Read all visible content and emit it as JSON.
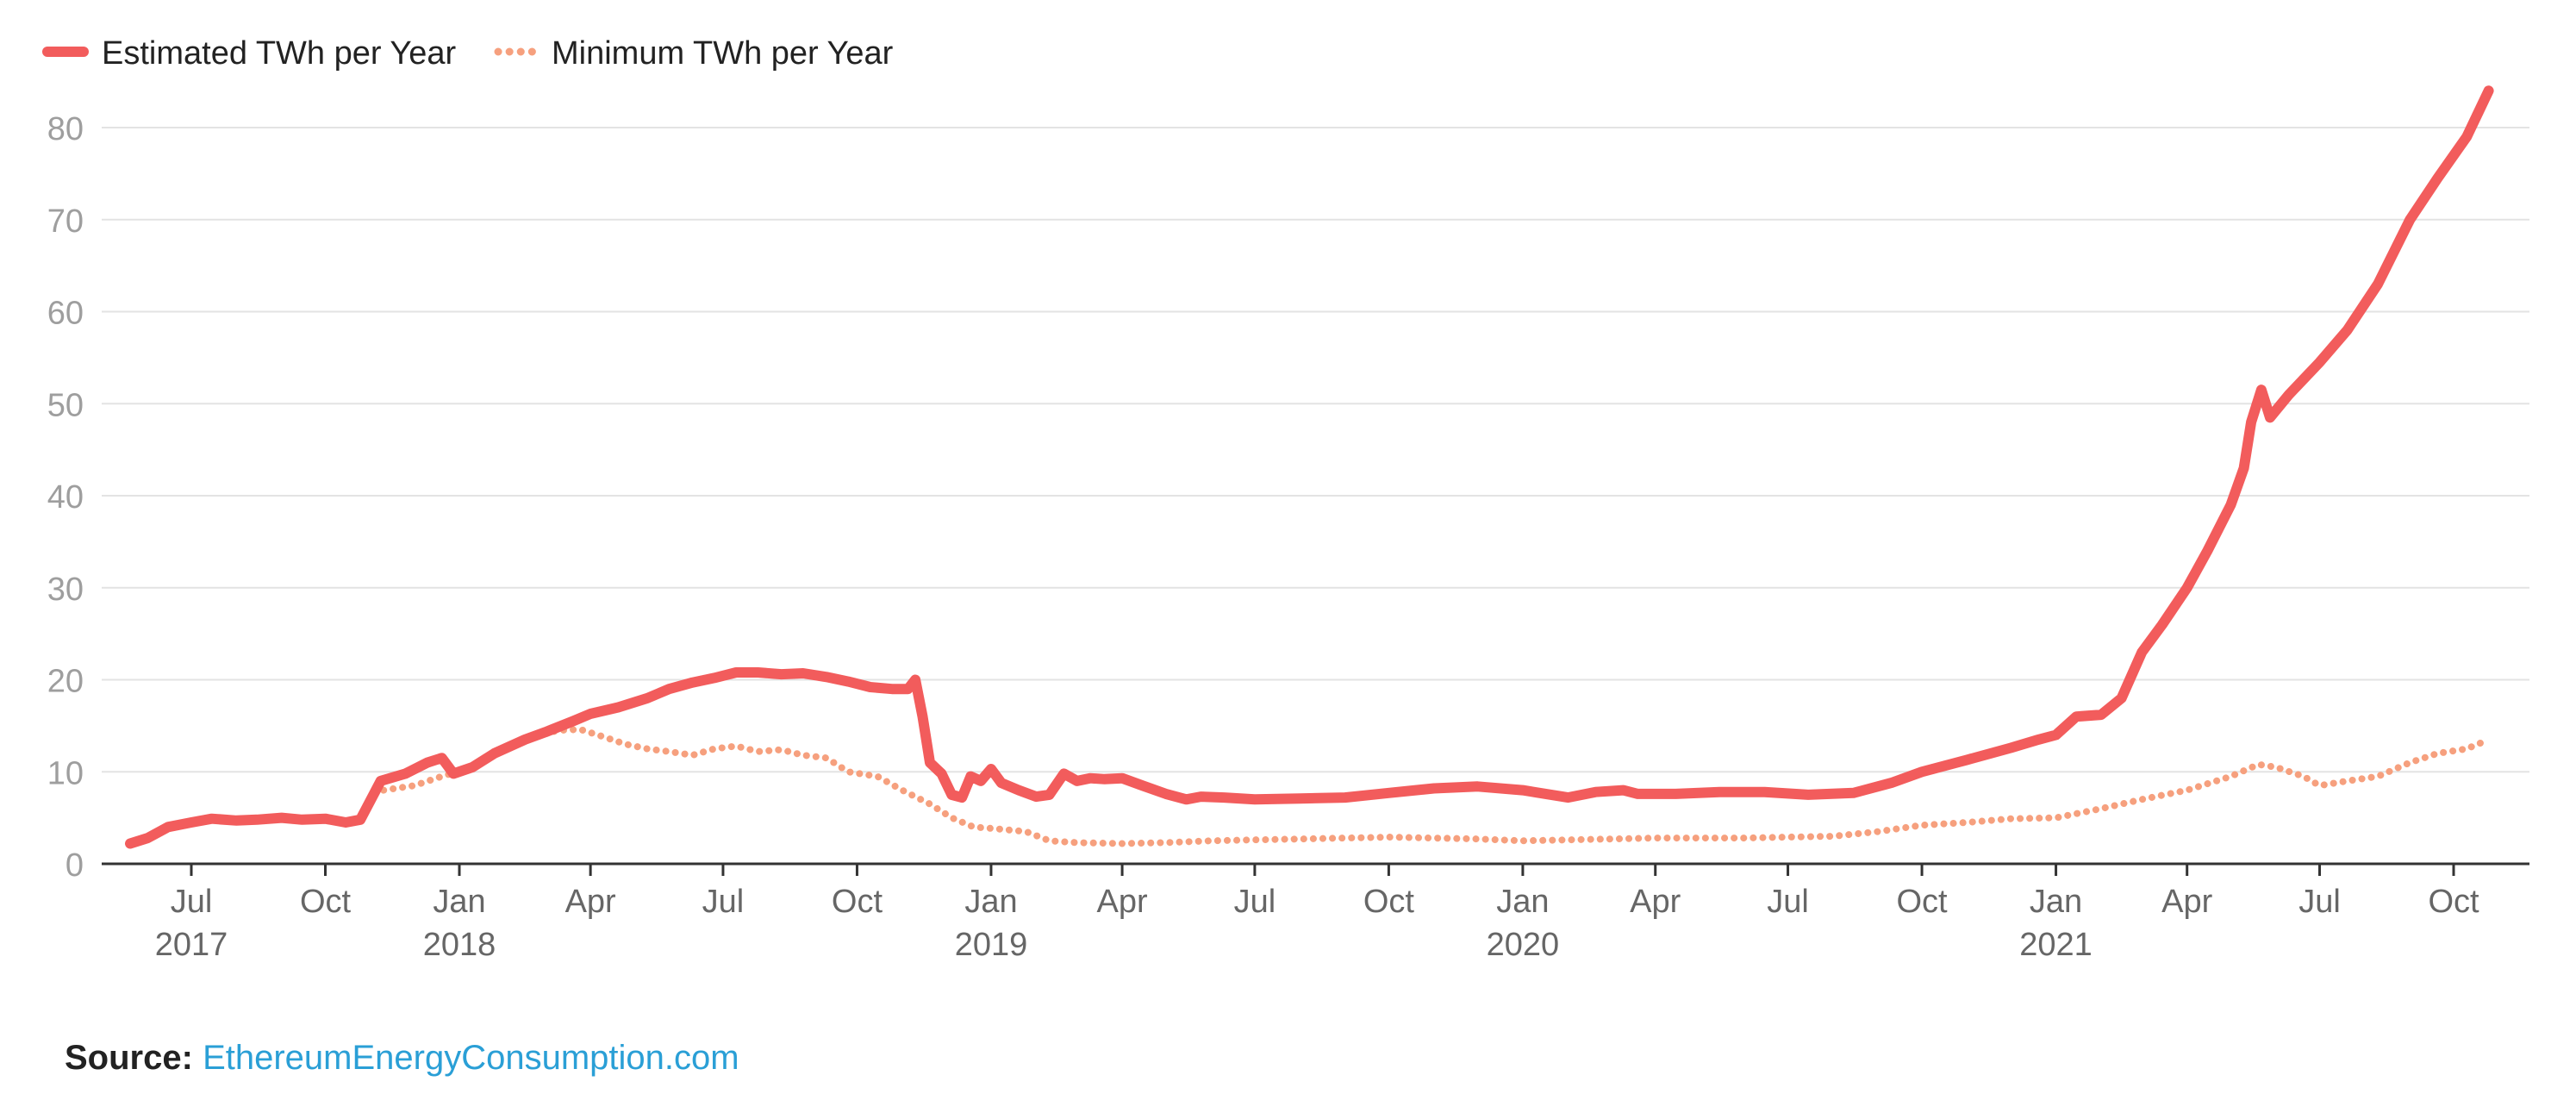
{
  "legend": {
    "estimated_label": "Estimated TWh per Year",
    "minimum_label": "Minimum TWh per Year"
  },
  "source": {
    "label": "Source:",
    "link_text": "EthereumEnergyConsumption.com"
  },
  "colors": {
    "estimated": "#f25c5c",
    "minimum": "#f6a07e",
    "grid": "#e3e3e3",
    "axis": "#333333"
  },
  "chart_data": {
    "type": "line",
    "title": "",
    "xlabel": "",
    "ylabel": "",
    "ylim": [
      0,
      80
    ],
    "yticks": [
      0,
      10,
      20,
      30,
      40,
      50,
      60,
      70,
      80
    ],
    "x_range": [
      "2017-05-20",
      "2021-12-01"
    ],
    "xticks": [
      {
        "date": "2017-07-01",
        "label": "Jul",
        "year": "2017"
      },
      {
        "date": "2017-10-01",
        "label": "Oct",
        "year": ""
      },
      {
        "date": "2018-01-01",
        "label": "Jan",
        "year": "2018"
      },
      {
        "date": "2018-04-01",
        "label": "Apr",
        "year": ""
      },
      {
        "date": "2018-07-01",
        "label": "Jul",
        "year": ""
      },
      {
        "date": "2018-10-01",
        "label": "Oct",
        "year": ""
      },
      {
        "date": "2019-01-01",
        "label": "Jan",
        "year": "2019"
      },
      {
        "date": "2019-04-01",
        "label": "Apr",
        "year": ""
      },
      {
        "date": "2019-07-01",
        "label": "Jul",
        "year": ""
      },
      {
        "date": "2019-10-01",
        "label": "Oct",
        "year": ""
      },
      {
        "date": "2020-01-01",
        "label": "Jan",
        "year": "2020"
      },
      {
        "date": "2020-04-01",
        "label": "Apr",
        "year": ""
      },
      {
        "date": "2020-07-01",
        "label": "Jul",
        "year": ""
      },
      {
        "date": "2020-10-01",
        "label": "Oct",
        "year": ""
      },
      {
        "date": "2021-01-01",
        "label": "Jan",
        "year": "2021"
      },
      {
        "date": "2021-04-01",
        "label": "Apr",
        "year": ""
      },
      {
        "date": "2021-07-01",
        "label": "Jul",
        "year": ""
      },
      {
        "date": "2021-10-01",
        "label": "Oct",
        "year": ""
      }
    ],
    "grid": true,
    "legend_position": "top-left",
    "series": [
      {
        "name": "Estimated TWh per Year",
        "style": "solid",
        "points": [
          [
            "2017-05-20",
            2.2
          ],
          [
            "2017-06-01",
            2.8
          ],
          [
            "2017-06-15",
            4.0
          ],
          [
            "2017-07-01",
            4.5
          ],
          [
            "2017-07-15",
            4.9
          ],
          [
            "2017-08-01",
            4.7
          ],
          [
            "2017-08-15",
            4.8
          ],
          [
            "2017-09-01",
            5.0
          ],
          [
            "2017-09-15",
            4.8
          ],
          [
            "2017-10-01",
            4.9
          ],
          [
            "2017-10-15",
            4.5
          ],
          [
            "2017-10-25",
            4.8
          ],
          [
            "2017-11-08",
            9.0
          ],
          [
            "2017-11-25",
            9.8
          ],
          [
            "2017-12-10",
            11.0
          ],
          [
            "2017-12-20",
            11.5
          ],
          [
            "2017-12-28",
            9.8
          ],
          [
            "2018-01-10",
            10.5
          ],
          [
            "2018-01-25",
            12.0
          ],
          [
            "2018-02-15",
            13.5
          ],
          [
            "2018-03-01",
            14.3
          ],
          [
            "2018-03-20",
            15.5
          ],
          [
            "2018-04-01",
            16.3
          ],
          [
            "2018-04-20",
            17.0
          ],
          [
            "2018-05-10",
            18.0
          ],
          [
            "2018-05-25",
            19.0
          ],
          [
            "2018-06-10",
            19.7
          ],
          [
            "2018-06-25",
            20.2
          ],
          [
            "2018-07-10",
            20.8
          ],
          [
            "2018-07-25",
            20.8
          ],
          [
            "2018-08-10",
            20.6
          ],
          [
            "2018-08-25",
            20.7
          ],
          [
            "2018-09-10",
            20.3
          ],
          [
            "2018-09-25",
            19.8
          ],
          [
            "2018-10-10",
            19.2
          ],
          [
            "2018-10-25",
            19.0
          ],
          [
            "2018-11-05",
            19.0
          ],
          [
            "2018-11-10",
            20.0
          ],
          [
            "2018-11-15",
            16.0
          ],
          [
            "2018-11-20",
            11.0
          ],
          [
            "2018-11-28",
            9.8
          ],
          [
            "2018-12-05",
            7.5
          ],
          [
            "2018-12-12",
            7.2
          ],
          [
            "2018-12-18",
            9.5
          ],
          [
            "2018-12-25",
            9.0
          ],
          [
            "2019-01-01",
            10.3
          ],
          [
            "2019-01-08",
            8.8
          ],
          [
            "2019-01-20",
            8.0
          ],
          [
            "2019-02-01",
            7.3
          ],
          [
            "2019-02-10",
            7.5
          ],
          [
            "2019-02-20",
            9.8
          ],
          [
            "2019-03-01",
            9.0
          ],
          [
            "2019-03-10",
            9.3
          ],
          [
            "2019-03-20",
            9.2
          ],
          [
            "2019-04-01",
            9.3
          ],
          [
            "2019-04-15",
            8.5
          ],
          [
            "2019-05-01",
            7.6
          ],
          [
            "2019-05-15",
            7.0
          ],
          [
            "2019-05-25",
            7.3
          ],
          [
            "2019-06-10",
            7.2
          ],
          [
            "2019-07-01",
            7.0
          ],
          [
            "2019-08-01",
            7.1
          ],
          [
            "2019-09-01",
            7.2
          ],
          [
            "2019-10-01",
            7.7
          ],
          [
            "2019-11-01",
            8.2
          ],
          [
            "2019-12-01",
            8.4
          ],
          [
            "2020-01-01",
            8.0
          ],
          [
            "2020-02-01",
            7.2
          ],
          [
            "2020-02-20",
            7.8
          ],
          [
            "2020-03-10",
            8.0
          ],
          [
            "2020-03-20",
            7.6
          ],
          [
            "2020-04-15",
            7.6
          ],
          [
            "2020-05-15",
            7.8
          ],
          [
            "2020-06-15",
            7.8
          ],
          [
            "2020-07-15",
            7.5
          ],
          [
            "2020-08-15",
            7.7
          ],
          [
            "2020-09-10",
            8.8
          ],
          [
            "2020-10-01",
            10.0
          ],
          [
            "2020-11-01",
            11.3
          ],
          [
            "2020-12-01",
            12.6
          ],
          [
            "2020-12-20",
            13.5
          ],
          [
            "2021-01-01",
            14.0
          ],
          [
            "2021-01-15",
            16.0
          ],
          [
            "2021-02-01",
            16.2
          ],
          [
            "2021-02-15",
            18.0
          ],
          [
            "2021-03-01",
            23.0
          ],
          [
            "2021-03-15",
            26.0
          ],
          [
            "2021-04-01",
            30.0
          ],
          [
            "2021-04-15",
            34.0
          ],
          [
            "2021-05-01",
            39.0
          ],
          [
            "2021-05-10",
            43.0
          ],
          [
            "2021-05-15",
            48.0
          ],
          [
            "2021-05-22",
            51.5
          ],
          [
            "2021-05-28",
            48.5
          ],
          [
            "2021-06-10",
            51.0
          ],
          [
            "2021-07-01",
            54.5
          ],
          [
            "2021-07-20",
            58.0
          ],
          [
            "2021-08-10",
            63.0
          ],
          [
            "2021-09-01",
            70.0
          ],
          [
            "2021-09-20",
            74.5
          ],
          [
            "2021-10-10",
            79.0
          ],
          [
            "2021-10-25",
            84.0
          ]
        ]
      },
      {
        "name": "Minimum TWh per Year",
        "style": "dotted",
        "points": [
          [
            "2017-11-10",
            8.0
          ],
          [
            "2017-12-01",
            8.5
          ],
          [
            "2017-12-20",
            9.5
          ],
          [
            "2018-01-10",
            10.5
          ],
          [
            "2018-02-01",
            12.5
          ],
          [
            "2018-02-20",
            13.8
          ],
          [
            "2018-03-10",
            14.5
          ],
          [
            "2018-03-25",
            14.6
          ],
          [
            "2018-04-10",
            13.8
          ],
          [
            "2018-04-25",
            13.0
          ],
          [
            "2018-05-10",
            12.5
          ],
          [
            "2018-05-25",
            12.2
          ],
          [
            "2018-06-10",
            11.8
          ],
          [
            "2018-06-25",
            12.5
          ],
          [
            "2018-07-10",
            12.8
          ],
          [
            "2018-07-25",
            12.2
          ],
          [
            "2018-08-10",
            12.4
          ],
          [
            "2018-08-25",
            11.8
          ],
          [
            "2018-09-10",
            11.5
          ],
          [
            "2018-09-25",
            10.0
          ],
          [
            "2018-10-15",
            9.5
          ],
          [
            "2018-11-01",
            8.0
          ],
          [
            "2018-11-20",
            6.5
          ],
          [
            "2018-12-05",
            5.0
          ],
          [
            "2018-12-20",
            4.0
          ],
          [
            "2019-01-05",
            3.8
          ],
          [
            "2019-01-25",
            3.5
          ],
          [
            "2019-02-10",
            2.5
          ],
          [
            "2019-03-01",
            2.3
          ],
          [
            "2019-04-01",
            2.2
          ],
          [
            "2019-05-01",
            2.3
          ],
          [
            "2019-06-01",
            2.5
          ],
          [
            "2019-07-01",
            2.6
          ],
          [
            "2019-08-01",
            2.7
          ],
          [
            "2019-09-01",
            2.8
          ],
          [
            "2019-10-01",
            2.9
          ],
          [
            "2019-11-01",
            2.8
          ],
          [
            "2019-12-01",
            2.7
          ],
          [
            "2020-01-01",
            2.5
          ],
          [
            "2020-02-01",
            2.6
          ],
          [
            "2020-03-01",
            2.7
          ],
          [
            "2020-04-01",
            2.8
          ],
          [
            "2020-05-01",
            2.8
          ],
          [
            "2020-06-01",
            2.8
          ],
          [
            "2020-07-01",
            2.9
          ],
          [
            "2020-08-01",
            3.0
          ],
          [
            "2020-09-01",
            3.5
          ],
          [
            "2020-10-01",
            4.2
          ],
          [
            "2020-11-01",
            4.5
          ],
          [
            "2020-12-01",
            4.9
          ],
          [
            "2021-01-01",
            5.0
          ],
          [
            "2021-02-01",
            6.0
          ],
          [
            "2021-03-01",
            7.0
          ],
          [
            "2021-04-01",
            8.0
          ],
          [
            "2021-05-01",
            9.5
          ],
          [
            "2021-05-20",
            10.8
          ],
          [
            "2021-06-01",
            10.5
          ],
          [
            "2021-06-20",
            9.5
          ],
          [
            "2021-07-01",
            8.5
          ],
          [
            "2021-07-20",
            9.0
          ],
          [
            "2021-08-10",
            9.5
          ],
          [
            "2021-09-01",
            11.0
          ],
          [
            "2021-09-20",
            12.0
          ],
          [
            "2021-10-10",
            12.5
          ],
          [
            "2021-10-25",
            13.5
          ]
        ]
      }
    ]
  }
}
